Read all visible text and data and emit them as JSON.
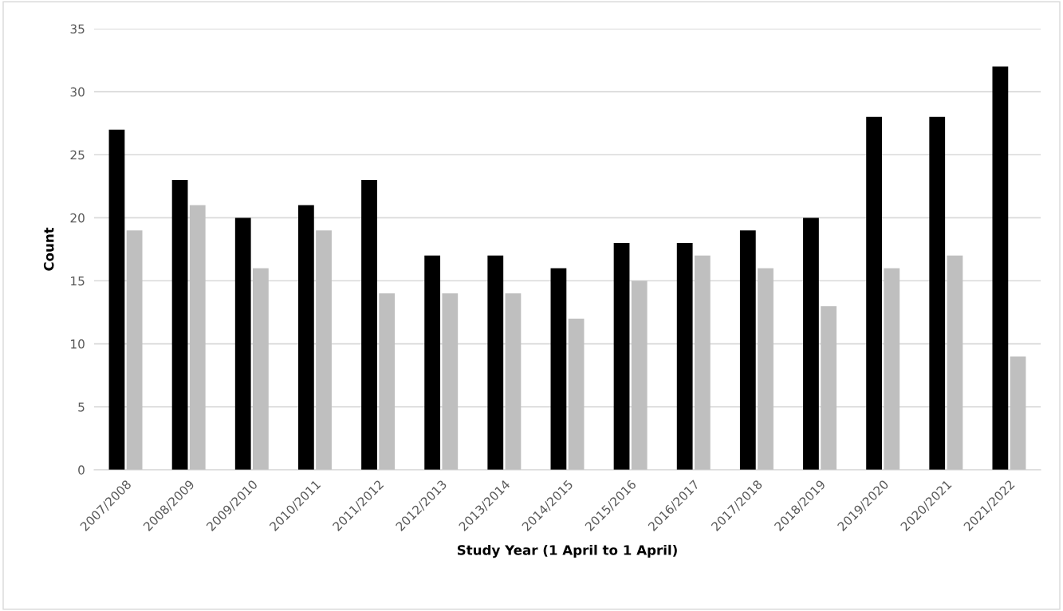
{
  "chart_data": {
    "type": "bar",
    "xlabel": "Study Year (1 April to 1 April)",
    "ylabel": "Count",
    "categories": [
      "2007/2008",
      "2008/2009",
      "2009/2010",
      "2010/2011",
      "2011/2012",
      "2012/2013",
      "2013/2014",
      "2014/2015",
      "2015/2016",
      "2016/2017",
      "2017/2018",
      "2018/2019",
      "2019/2020",
      "2020/2021",
      "2021/2022"
    ],
    "series": [
      {
        "color": "#000000",
        "values": [
          27,
          23,
          20,
          21,
          23,
          17,
          17,
          16,
          18,
          18,
          19,
          20,
          28,
          28,
          32
        ]
      },
      {
        "color": "#bfbfbf",
        "values": [
          19,
          21,
          16,
          19,
          14,
          14,
          14,
          12,
          15,
          17,
          16,
          13,
          16,
          17,
          9
        ]
      }
    ],
    "ylim": [
      0,
      35
    ],
    "yticks": [
      0,
      5,
      10,
      15,
      20,
      25,
      30,
      35
    ],
    "grid": "y",
    "legend": false
  }
}
